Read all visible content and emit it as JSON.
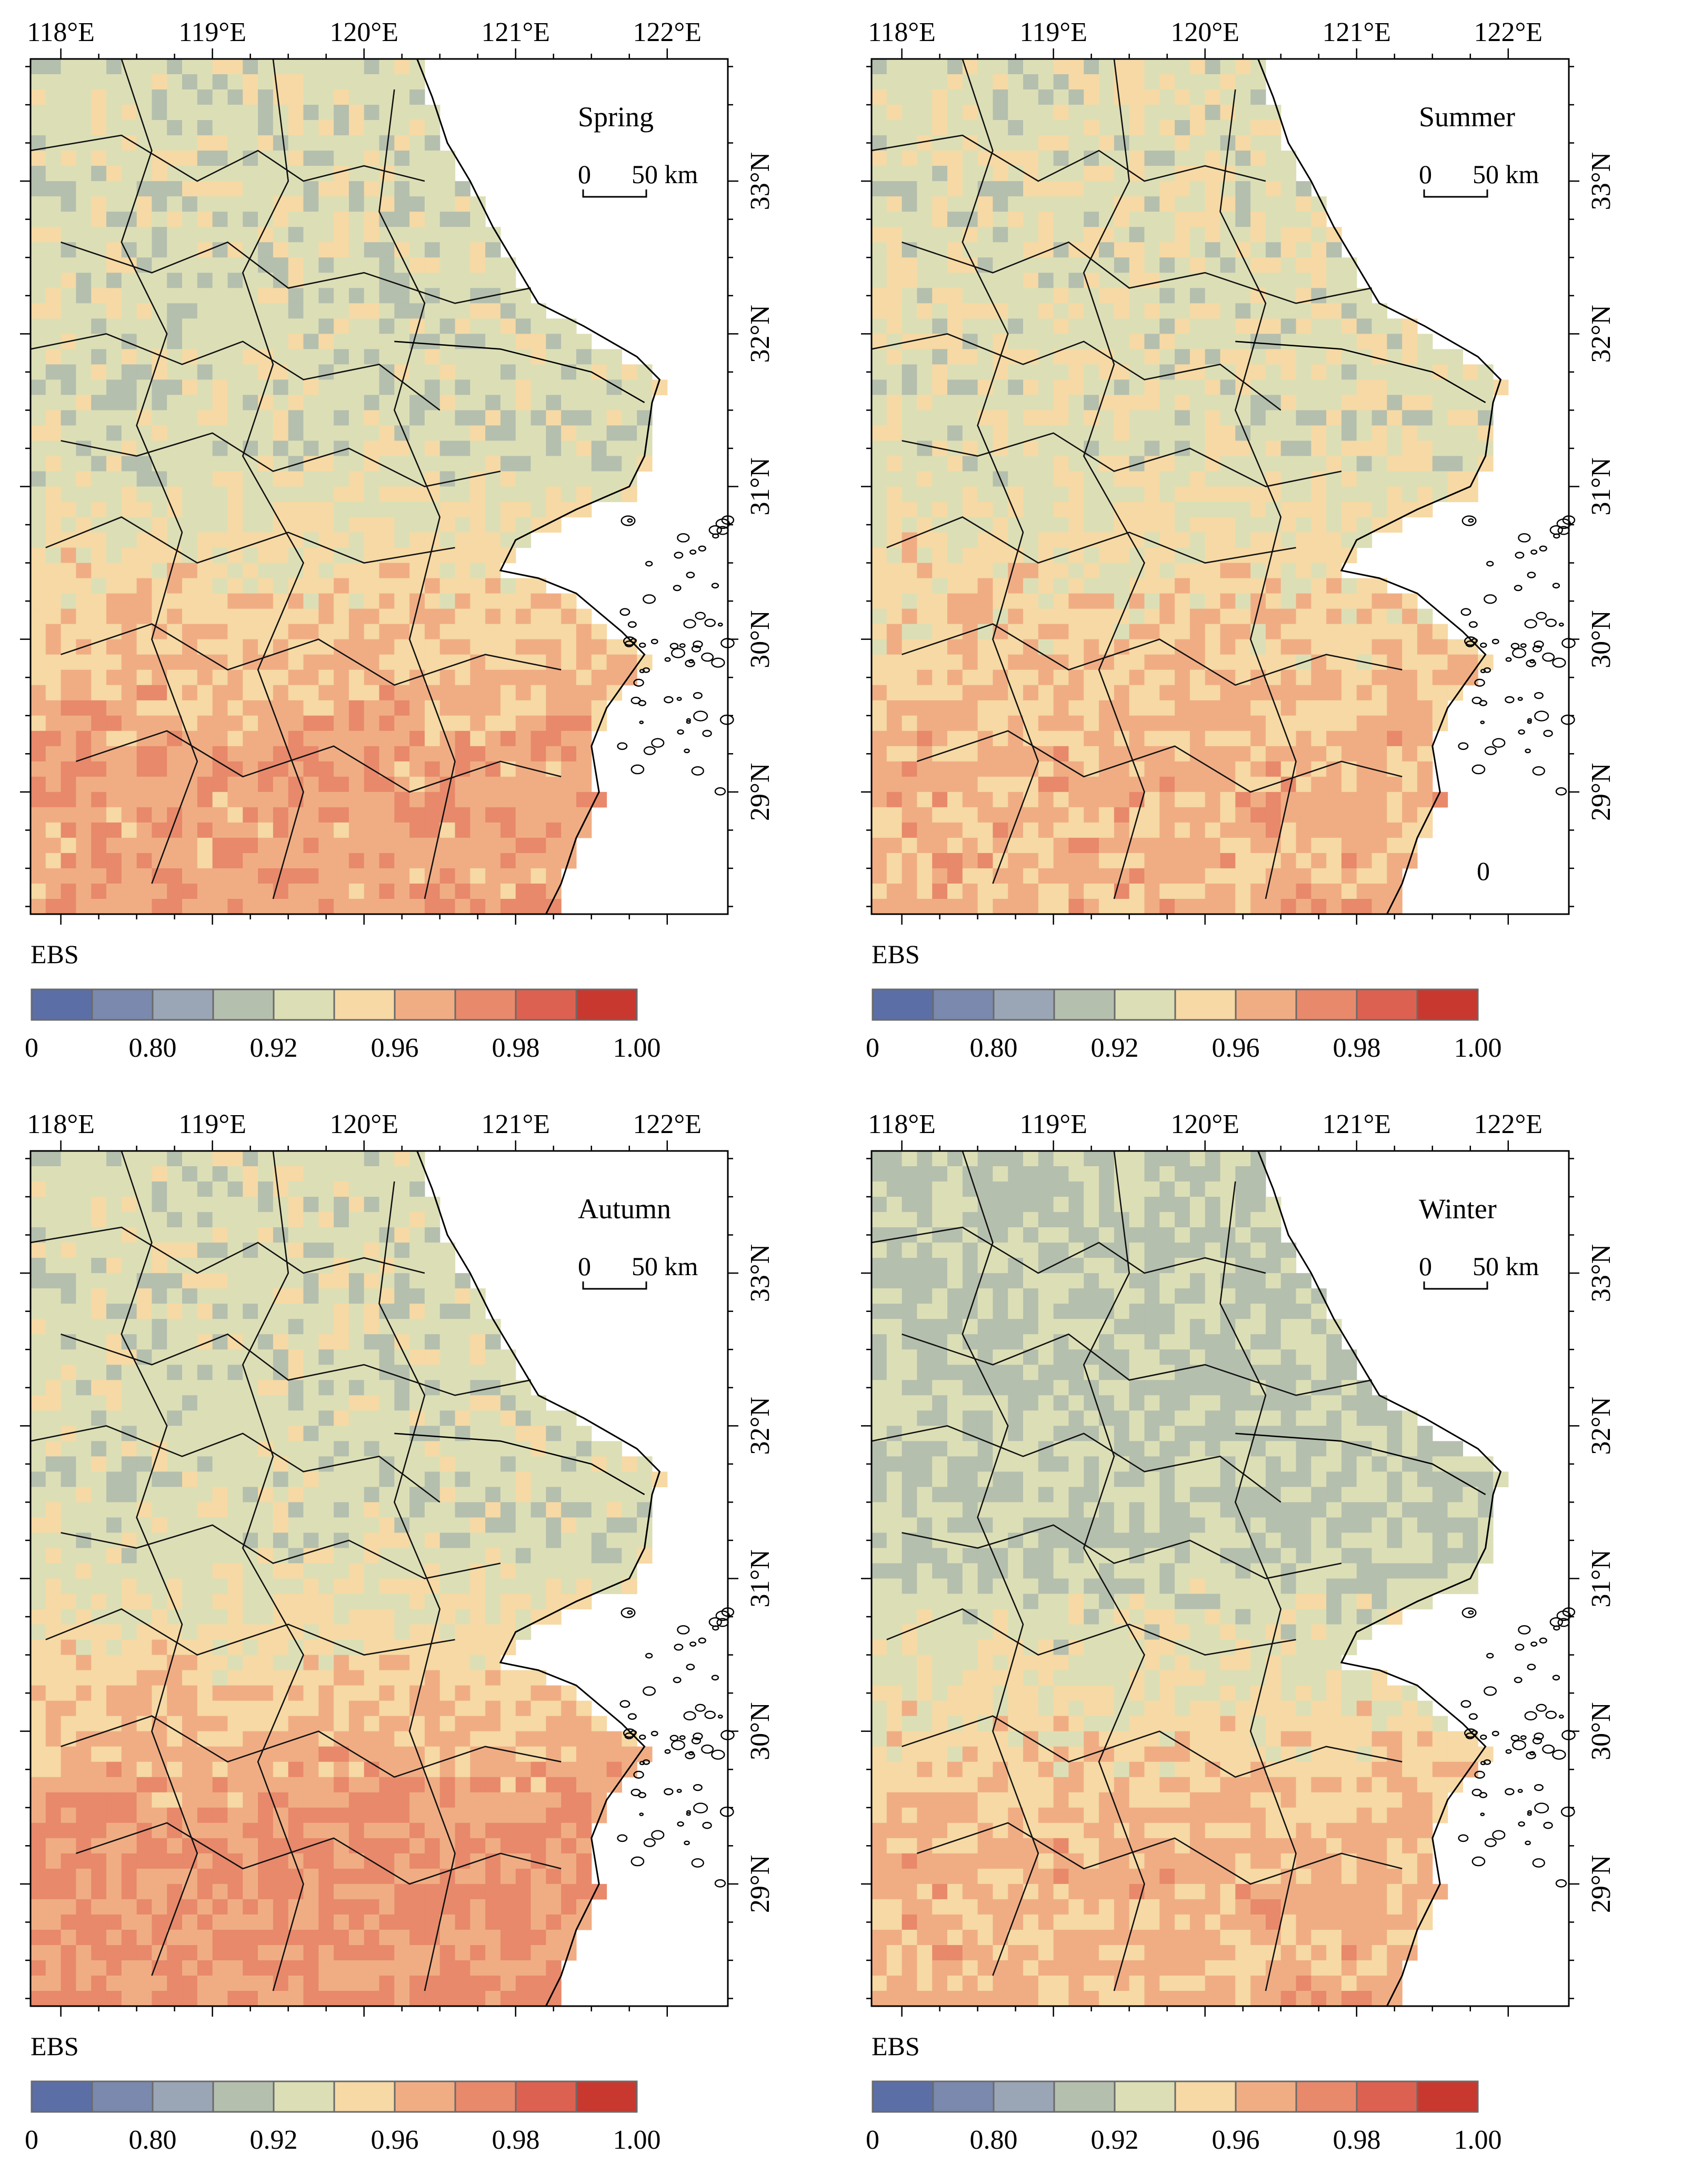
{
  "figure": {
    "panels": [
      {
        "id": "spring",
        "season_label": "Spring",
        "lon_ticks": [
          "118°E",
          "119°E",
          "120°E",
          "121°E",
          "122°E"
        ],
        "lat_ticks": [
          "33°N",
          "32°N",
          "31°N",
          "30°N",
          "29°N"
        ],
        "scalebar": {
          "zero": "0",
          "distance": "50 km"
        },
        "legend": {
          "title": "EBS",
          "labels": [
            "0",
            "0.80",
            "0.92",
            "0.96",
            "0.98",
            "1.00"
          ]
        },
        "dominant_pattern": "north: 0.92–0.96 class; south: 0.96–0.98 class"
      },
      {
        "id": "summer",
        "season_label": "Summer",
        "lon_ticks": [
          "118°E",
          "119°E",
          "120°E",
          "121°E",
          "122°E"
        ],
        "lat_ticks": [
          "33°N",
          "32°N",
          "31°N",
          "30°N",
          "29°N"
        ],
        "scalebar": {
          "zero": "0",
          "distance": "50 km"
        },
        "legend": {
          "title": "EBS",
          "labels": [
            "0",
            "0.80",
            "0.92",
            "0.96",
            "0.98",
            "1.00"
          ]
        },
        "extra_label": "0"
      },
      {
        "id": "autumn",
        "season_label": "Autumn",
        "lon_ticks": [
          "118°E",
          "119°E",
          "120°E",
          "121°E",
          "122°E"
        ],
        "lat_ticks": [
          "33°N",
          "32°N",
          "31°N",
          "30°N",
          "29°N"
        ],
        "scalebar": {
          "zero": "0",
          "distance": "50 km"
        },
        "legend": {
          "title": "EBS",
          "labels": [
            "0",
            "0.80",
            "0.92",
            "0.96",
            "0.98",
            "1.00"
          ]
        }
      },
      {
        "id": "winter",
        "season_label": "Winter",
        "lon_ticks": [
          "118°E",
          "119°E",
          "120°E",
          "121°E",
          "122°E"
        ],
        "lat_ticks": [
          "33°N",
          "32°N",
          "31°N",
          "30°N",
          "29°N"
        ],
        "scalebar": {
          "zero": "0",
          "distance": "50 km"
        },
        "legend": {
          "title": "EBS",
          "labels": [
            "0",
            "0.80",
            "0.92",
            "0.96",
            "0.98",
            "1.00"
          ]
        }
      }
    ],
    "colorscale": [
      "#5b6ea6",
      "#7a89ad",
      "#9aa5b5",
      "#b5bfae",
      "#dcdfb6",
      "#f6d9a4",
      "#f0ad84",
      "#e8896b",
      "#dc6150",
      "#c8382f"
    ],
    "colors": {
      "coast": "#000000",
      "land_outline": "#111111",
      "background": "#ffffff"
    }
  }
}
